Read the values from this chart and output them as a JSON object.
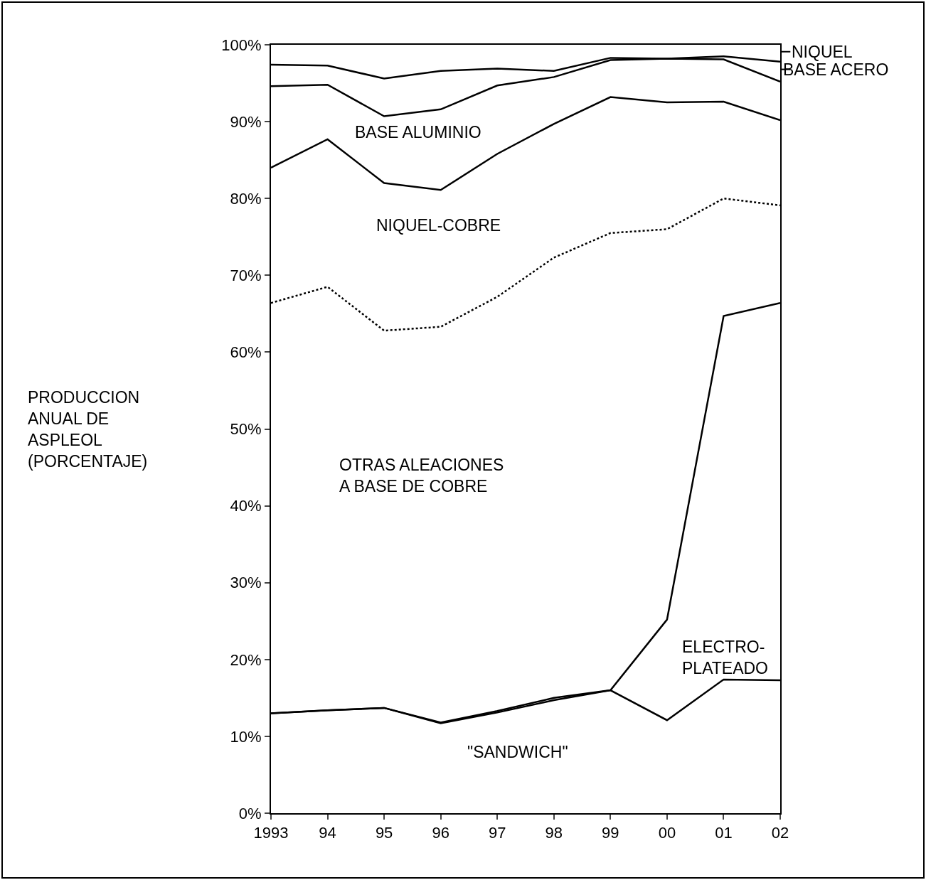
{
  "chart_data": {
    "type": "line",
    "ylabel": "PRODUCCION\nANUAL DE\nASPLEOL\n(PORCENTAJE)",
    "x": [
      1993,
      1994,
      1995,
      1996,
      1997,
      1998,
      1999,
      2000,
      2001,
      2002
    ],
    "xlim": [
      1993,
      2002
    ],
    "xticks": [
      {
        "value": 1993,
        "label": "1993"
      },
      {
        "value": 1994,
        "label": "94"
      },
      {
        "value": 1995,
        "label": "95"
      },
      {
        "value": 1996,
        "label": "96"
      },
      {
        "value": 1997,
        "label": "97"
      },
      {
        "value": 1998,
        "label": "98"
      },
      {
        "value": 1999,
        "label": "99"
      },
      {
        "value": 2000,
        "label": "00"
      },
      {
        "value": 2001,
        "label": "01"
      },
      {
        "value": 2002,
        "label": "02"
      }
    ],
    "ylim": [
      0,
      100
    ],
    "yticks": [
      {
        "value": 0,
        "label": "0%"
      },
      {
        "value": 10,
        "label": "10%"
      },
      {
        "value": 20,
        "label": "20%"
      },
      {
        "value": 30,
        "label": "30%"
      },
      {
        "value": 40,
        "label": "40%"
      },
      {
        "value": 50,
        "label": "50%"
      },
      {
        "value": 60,
        "label": "60%"
      },
      {
        "value": 70,
        "label": "70%"
      },
      {
        "value": 80,
        "label": "80%"
      },
      {
        "value": 90,
        "label": "90%"
      },
      {
        "value": 100,
        "label": "100%"
      }
    ],
    "series": [
      {
        "color": "#000000",
        "line_style": "solid",
        "values": [
          13.0,
          13.4,
          13.7,
          11.7,
          13.1,
          14.7,
          16.0,
          12.1,
          17.4,
          17.3
        ]
      },
      {
        "color": "#000000",
        "line_style": "solid",
        "values": [
          13.0,
          13.4,
          13.7,
          11.8,
          13.3,
          15.0,
          16.0,
          25.2,
          64.7,
          66.4
        ]
      },
      {
        "color": "#000000",
        "line_style": "dotted",
        "values": [
          66.4,
          68.5,
          62.8,
          63.3,
          67.2,
          72.3,
          75.5,
          76.0,
          80.0,
          79.1
        ]
      },
      {
        "color": "#000000",
        "line_style": "solid",
        "values": [
          84.0,
          87.7,
          82.0,
          81.1,
          85.8,
          89.7,
          93.2,
          92.5,
          92.6,
          90.2
        ]
      },
      {
        "color": "#000000",
        "line_style": "solid",
        "values": [
          94.6,
          94.8,
          90.7,
          91.6,
          94.7,
          95.8,
          98.0,
          98.2,
          98.1,
          95.2
        ]
      },
      {
        "color": "#000000",
        "line_style": "solid",
        "values": [
          97.4,
          97.3,
          95.6,
          96.6,
          96.9,
          96.6,
          98.3,
          98.2,
          98.5,
          97.8
        ]
      }
    ],
    "annotations": [
      "BASE ALUMINIO",
      "NIQUEL-COBRE",
      "OTRAS ALEACIONES\nA BASE DE COBRE",
      "ELECTRO-\nPLATEADO",
      "\"SANDWICH\"",
      "NIQUEL",
      "BASE ACERO"
    ],
    "grid": false,
    "marker": "none"
  }
}
